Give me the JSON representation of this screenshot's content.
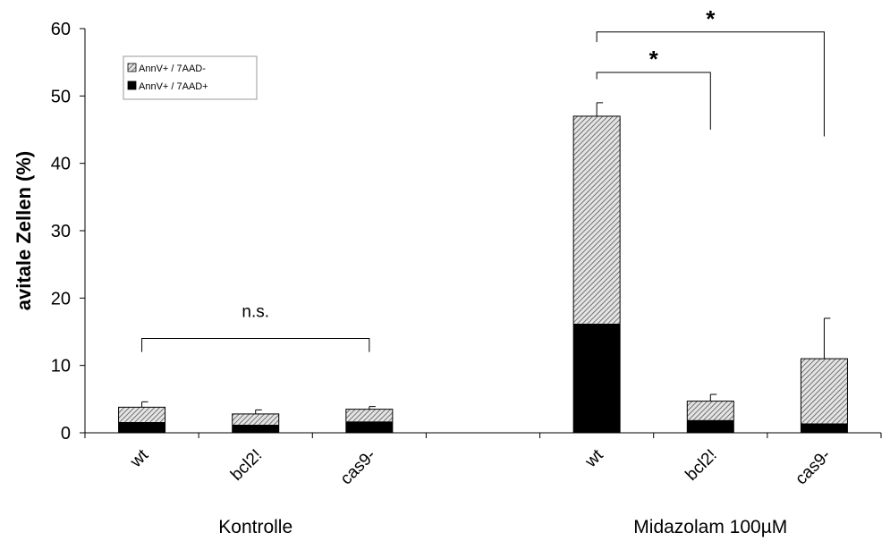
{
  "chart_data": {
    "type": "bar",
    "stacked": true,
    "ylabel": "avitale Zellen (%)",
    "ylim": [
      0,
      60
    ],
    "yticks": [
      "0",
      "10",
      "20",
      "30",
      "40",
      "50",
      "60"
    ],
    "grid": false,
    "legend_position": "top-left",
    "groups": [
      "Kontrolle",
      "Midazolam 100µM"
    ],
    "slots": [
      "wt",
      "bcl2!",
      "cas9-",
      "",
      "wt",
      "bcl2!",
      "cas9-"
    ],
    "slot_group": [
      0,
      0,
      0,
      null,
      1,
      1,
      1
    ],
    "series": [
      {
        "name": "AnnV+ / 7AAD+",
        "pattern": "solid-black",
        "values": [
          1.6,
          1.2,
          1.7,
          null,
          16.2,
          1.9,
          1.4
        ]
      },
      {
        "name": "AnnV+ / 7AAD-",
        "pattern": "hatched",
        "values": [
          2.2,
          1.6,
          1.8,
          null,
          30.8,
          2.8,
          9.6
        ]
      }
    ],
    "totals": [
      3.8,
      2.8,
      3.5,
      null,
      47.0,
      4.7,
      11.0
    ],
    "error_bars": [
      0.8,
      0.6,
      0.4,
      null,
      2.0,
      1.0,
      6.0
    ],
    "legend_order": [
      1,
      0
    ],
    "annotations": [
      {
        "text": "n.s.",
        "from_slot": 0,
        "to_slot": 2,
        "y": 14,
        "drop_left_to": 12,
        "drop_right_to": 12
      },
      {
        "text": "*",
        "from_slot": 4,
        "to_slot": 5,
        "y": 53.5,
        "drop_left_to": 52.5,
        "drop_right_to": 45
      },
      {
        "text": "*",
        "from_slot": 4,
        "to_slot": 6,
        "y": 59.5,
        "drop_left_to": 58,
        "drop_right_to": 44
      }
    ]
  }
}
